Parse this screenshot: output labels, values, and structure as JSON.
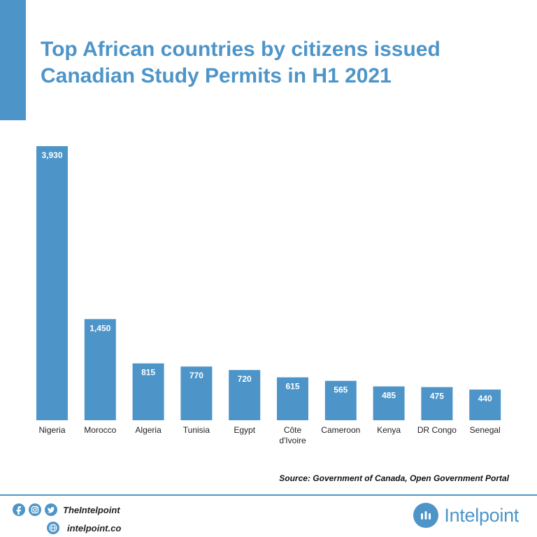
{
  "title": "Top African countries by citizens issued Canadian Study Permits in H1 2021",
  "source": "Source: Government of Canada, Open Government Portal",
  "footer": {
    "social_handle": "TheIntelpoint",
    "website": "intelpoint.co",
    "brand": "Intelpoint",
    "icons": [
      "facebook-icon",
      "instagram-icon",
      "twitter-icon",
      "globe-icon",
      "intelpoint-logo-icon"
    ]
  },
  "colors": {
    "accent": "#4d95c9",
    "text": "#222222"
  },
  "chart_data": {
    "type": "bar",
    "title": "Top African countries by citizens issued Canadian Study Permits in H1 2021",
    "categories": [
      "Nigeria",
      "Morocco",
      "Algeria",
      "Tunisia",
      "Egypt",
      "Côte d'Ivoire",
      "Cameroon",
      "Kenya",
      "DR Congo",
      "Senegal"
    ],
    "values": [
      3930,
      1450,
      815,
      770,
      720,
      615,
      565,
      485,
      475,
      440
    ],
    "value_labels": [
      "3,930",
      "1,450",
      "815",
      "770",
      "720",
      "615",
      "565",
      "485",
      "475",
      "440"
    ],
    "xlabel": "",
    "ylabel": "",
    "ylim": [
      0,
      3930
    ],
    "grid": false,
    "legend": "none"
  }
}
